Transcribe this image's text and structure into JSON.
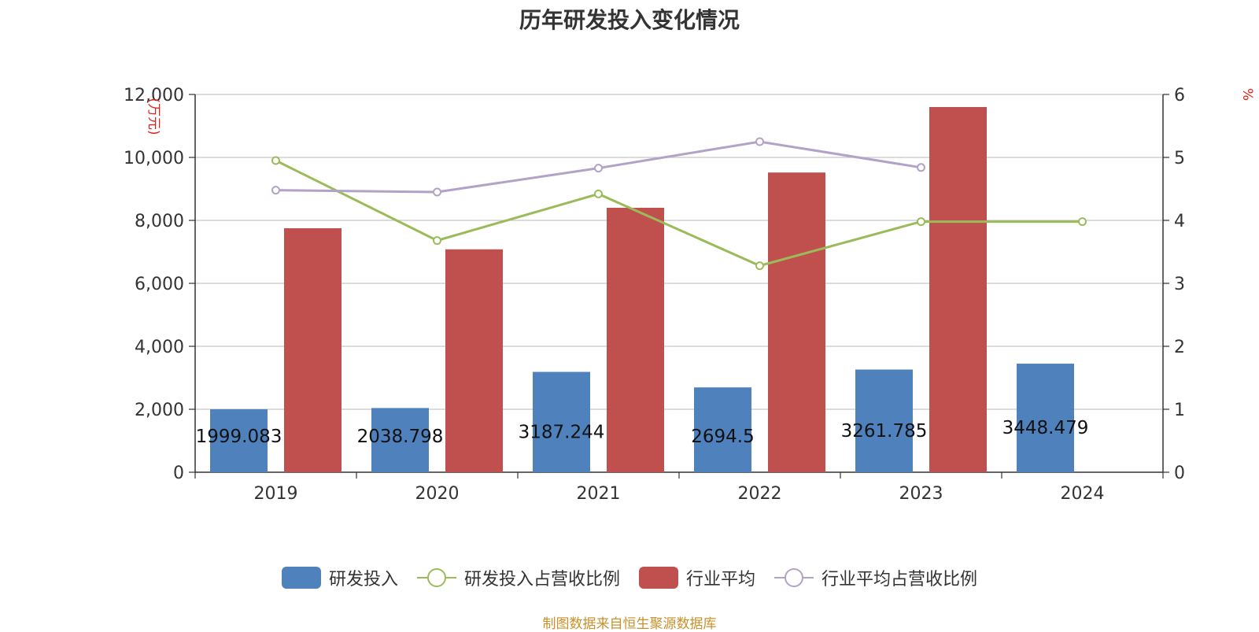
{
  "chart_data": {
    "type": "bar",
    "title": "历年研发投入变化情况",
    "categories": [
      "2019",
      "2020",
      "2021",
      "2022",
      "2023",
      "2024"
    ],
    "y_left": {
      "unit_label": "(万元)",
      "ylim": [
        0,
        12000
      ],
      "ticks": [
        "0",
        "2,000",
        "4,000",
        "6,000",
        "8,000",
        "10,000",
        "12,000"
      ]
    },
    "y_right": {
      "unit_label": "%",
      "ylim": [
        0,
        6
      ],
      "ticks": [
        "0",
        "1",
        "2",
        "3",
        "4",
        "5",
        "6"
      ]
    },
    "series": [
      {
        "name": "研发投入",
        "type": "bar",
        "axis": "left",
        "color": "#4f81bd",
        "values": [
          1999.083,
          2038.798,
          3187.244,
          2694.5,
          3261.785,
          3448.479
        ],
        "labels": [
          "1999.083",
          "2038.798",
          "3187.244",
          "2694.5",
          "3261.785",
          "3448.479"
        ]
      },
      {
        "name": "研发投入占营收比例",
        "type": "line",
        "axis": "right",
        "color": "#9bbb59",
        "values": [
          4.95,
          3.68,
          4.42,
          3.28,
          3.98,
          3.98
        ]
      },
      {
        "name": "行业平均",
        "type": "bar",
        "axis": "left",
        "color": "#c0504d",
        "values": [
          7750,
          7080,
          8400,
          9520,
          11600,
          null
        ]
      },
      {
        "name": "行业平均占营收比例",
        "type": "line",
        "axis": "right",
        "color": "#b3a2c7",
        "values": [
          4.48,
          4.45,
          4.83,
          5.25,
          4.84,
          null
        ]
      }
    ],
    "grid": true,
    "legend_position": "bottom"
  },
  "source": "制图数据来自恒生聚源数据库"
}
